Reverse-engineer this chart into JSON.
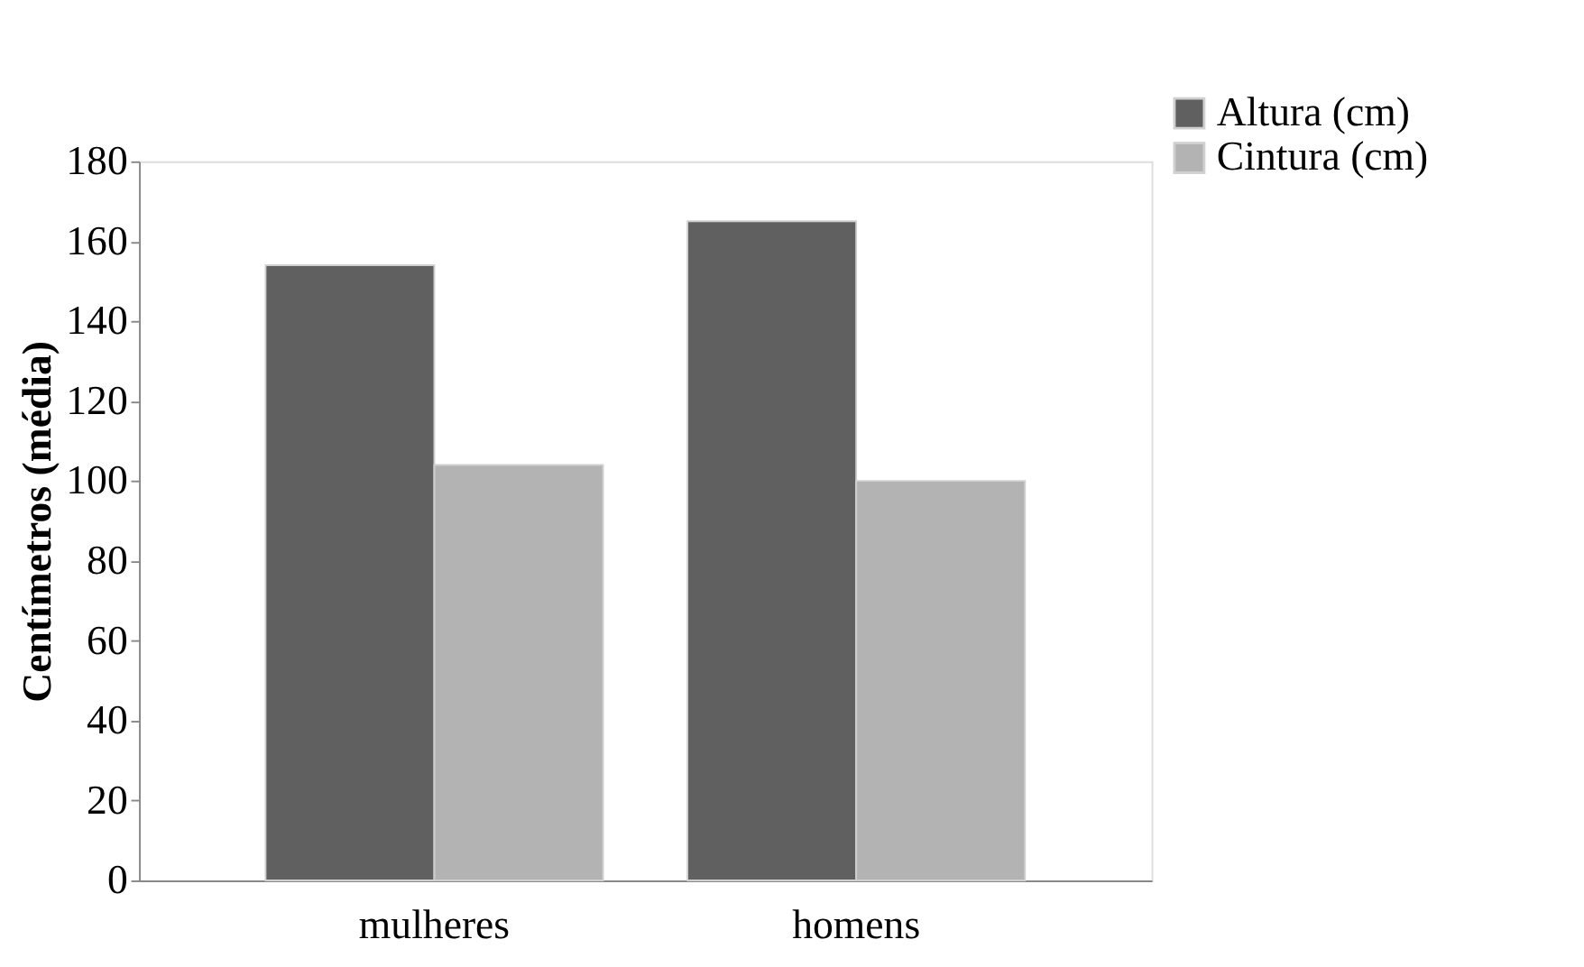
{
  "chart_data": {
    "type": "bar",
    "ylabel": "Centímetros (média)",
    "categories": [
      "mulheres",
      "homens"
    ],
    "series": [
      {
        "name": "Altura (cm)",
        "color": "#606060",
        "values": [
          154,
          165
        ]
      },
      {
        "name": "Cintura (cm)",
        "color": "#b3b3b3",
        "values": [
          104,
          100
        ]
      }
    ],
    "ylim": [
      0,
      180
    ],
    "yticks": [
      0,
      20,
      40,
      60,
      80,
      100,
      120,
      140,
      160,
      180
    ],
    "grid": false,
    "legend": "top right"
  }
}
